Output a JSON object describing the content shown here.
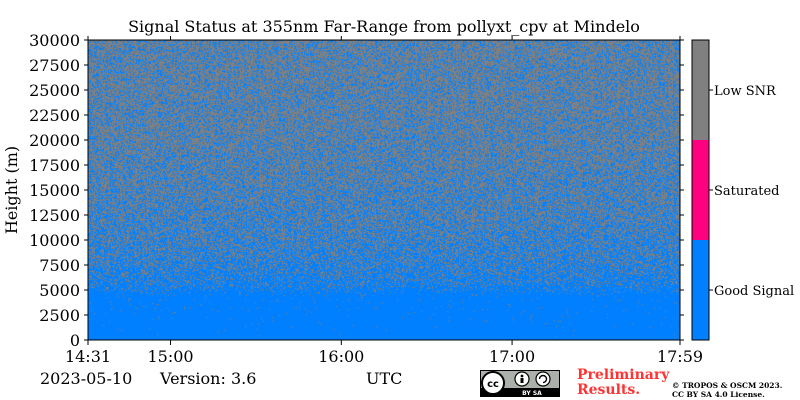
{
  "title": "Signal Status at 355nm Far-Range from pollyxt_cpv at Mindelo",
  "footer": {
    "date": "2023-05-10",
    "version": "Version: 3.6",
    "xlabel": "UTC",
    "preliminary_line1": "Preliminary",
    "preliminary_line2": "Results.",
    "copyright_line1": "© TROPOS & OSCM 2023.",
    "copyright_line2": "CC BY SA 4.0 License."
  },
  "license_badge": {
    "text": "BY SA",
    "icon": "cc-by-sa-icon"
  },
  "chart_data": {
    "type": "heatmap",
    "title": "Signal Status at 355nm Far-Range from pollyxt_cpv at Mindelo",
    "xlabel": "UTC",
    "ylabel": "Height (m)",
    "x_range": [
      "14:31",
      "17:59"
    ],
    "x_ticks": [
      "14:31",
      "15:00",
      "16:00",
      "17:00",
      "17:59"
    ],
    "x_tick_minutes": [
      871,
      900,
      960,
      1020,
      1079
    ],
    "ylim": [
      0,
      30000
    ],
    "y_ticks": [
      0,
      2500,
      5000,
      7500,
      10000,
      12500,
      15000,
      17500,
      20000,
      22500,
      25000,
      27500,
      30000
    ],
    "categories": [
      {
        "name": "Good Signal",
        "color": "#0080ff"
      },
      {
        "name": "Saturated",
        "color": "#ff0080"
      },
      {
        "name": "Low SNR",
        "color": "#808080"
      }
    ],
    "colorbar_labels": [
      "Low SNR",
      "Saturated",
      "Good Signal"
    ],
    "good_signal_profile": [
      {
        "height": 0,
        "fraction": 1.0
      },
      {
        "height": 4500,
        "fraction": 0.98
      },
      {
        "height": 5500,
        "fraction": 0.75
      },
      {
        "height": 8000,
        "fraction": 0.58
      },
      {
        "height": 12000,
        "fraction": 0.46
      },
      {
        "height": 20000,
        "fraction": 0.34
      },
      {
        "height": 30000,
        "fraction": 0.32
      }
    ]
  }
}
